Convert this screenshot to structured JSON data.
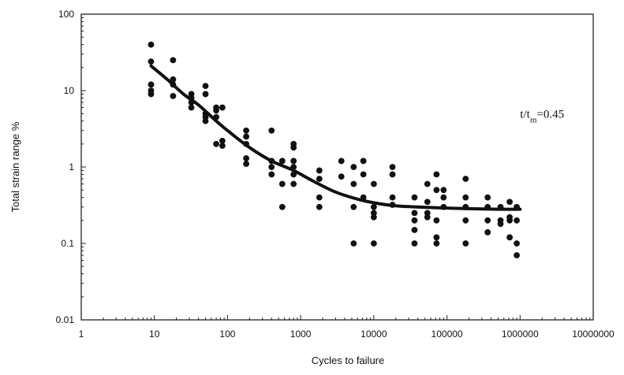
{
  "chart_data": {
    "type": "scatter",
    "title": "",
    "xlabel": "Cycles to failure",
    "ylabel": "Total strain range %",
    "x_scale": "log",
    "y_scale": "log",
    "xlim": [
      1,
      10000000
    ],
    "ylim": [
      0.01,
      100
    ],
    "grid": false,
    "legend": "none",
    "x_ticks": [
      {
        "value": 1,
        "label": "1"
      },
      {
        "value": 10,
        "label": "10"
      },
      {
        "value": 100,
        "label": "100"
      },
      {
        "value": 1000,
        "label": "1000"
      },
      {
        "value": 10000,
        "label": "10000"
      },
      {
        "value": 100000,
        "label": "100000"
      },
      {
        "value": 1000000,
        "label": "1000000"
      },
      {
        "value": 10000000,
        "label": "10000000"
      }
    ],
    "y_ticks": [
      {
        "value": 0.01,
        "label": "0.01"
      },
      {
        "value": 0.1,
        "label": "0.1"
      },
      {
        "value": 1,
        "label": "1"
      },
      {
        "value": 10,
        "label": "10"
      },
      {
        "value": 100,
        "label": "100"
      }
    ],
    "annotation": {
      "text_main": "t/t",
      "text_sub": "m",
      "text_tail": "=0.45",
      "x": 2000000,
      "y": 4.4
    },
    "marker_color": "#111111",
    "curve_color": "#111111",
    "series": [
      {
        "kind": "points",
        "x": [
          9,
          9,
          9,
          9,
          9,
          18,
          18,
          18,
          18,
          32,
          32,
          32,
          32,
          50,
          50,
          50,
          50,
          50,
          70,
          70,
          70,
          70,
          85,
          85,
          85,
          180,
          180,
          180,
          180,
          180,
          400,
          400,
          400,
          400,
          560,
          560,
          560,
          800,
          800,
          800,
          800,
          800,
          800,
          1800,
          1800,
          1800,
          1800,
          3600,
          3600,
          5300,
          5300,
          5300,
          5300,
          7200,
          7200,
          7200,
          10000,
          10000,
          10000,
          10000,
          10000,
          18000,
          18000,
          18000,
          18000,
          36000,
          36000,
          36000,
          36000,
          36000,
          54000,
          54000,
          54000,
          54000,
          72000,
          72000,
          72000,
          72000,
          72000,
          90000,
          90000,
          90000,
          180000,
          180000,
          180000,
          180000,
          180000,
          360000,
          360000,
          360000,
          360000,
          540000,
          540000,
          540000,
          720000,
          720000,
          720000,
          720000,
          900000,
          900000,
          900000,
          900000
        ],
        "y": [
          40,
          24,
          12,
          10,
          9,
          25,
          14,
          12,
          8.5,
          9,
          7,
          6,
          8,
          11.5,
          9,
          5,
          4,
          4.5,
          6,
          2,
          4.5,
          5.5,
          6,
          2.2,
          1.9,
          3,
          2,
          1.3,
          1.1,
          2.5,
          3,
          1.2,
          0.8,
          1,
          1.2,
          0.3,
          0.6,
          2,
          1.8,
          1.2,
          1,
          0.8,
          0.6,
          0.9,
          0.4,
          0.3,
          0.7,
          1.2,
          0.75,
          1,
          0.6,
          0.3,
          0.1,
          1.2,
          0.8,
          0.4,
          0.6,
          0.3,
          0.22,
          0.25,
          0.1,
          1,
          0.8,
          0.32,
          0.4,
          0.4,
          0.2,
          0.15,
          0.1,
          0.25,
          0.6,
          0.22,
          0.25,
          0.35,
          0.8,
          0.5,
          0.2,
          0.12,
          0.1,
          0.5,
          0.3,
          0.4,
          0.7,
          0.4,
          0.3,
          0.2,
          0.1,
          0.4,
          0.3,
          0.14,
          0.2,
          0.3,
          0.2,
          0.18,
          0.35,
          0.22,
          0.2,
          0.12,
          0.3,
          0.2,
          0.1,
          0.07
        ]
      },
      {
        "kind": "fit",
        "x": [
          9,
          15,
          25,
          40,
          70,
          100,
          200,
          400,
          800,
          1500,
          3000,
          6000,
          10000,
          20000,
          40000,
          100000,
          200000,
          500000,
          1000000
        ],
        "y": [
          21,
          14,
          9,
          6.5,
          4,
          3,
          1.8,
          1.2,
          0.9,
          0.65,
          0.47,
          0.38,
          0.34,
          0.31,
          0.3,
          0.29,
          0.285,
          0.28,
          0.28
        ]
      }
    ]
  }
}
